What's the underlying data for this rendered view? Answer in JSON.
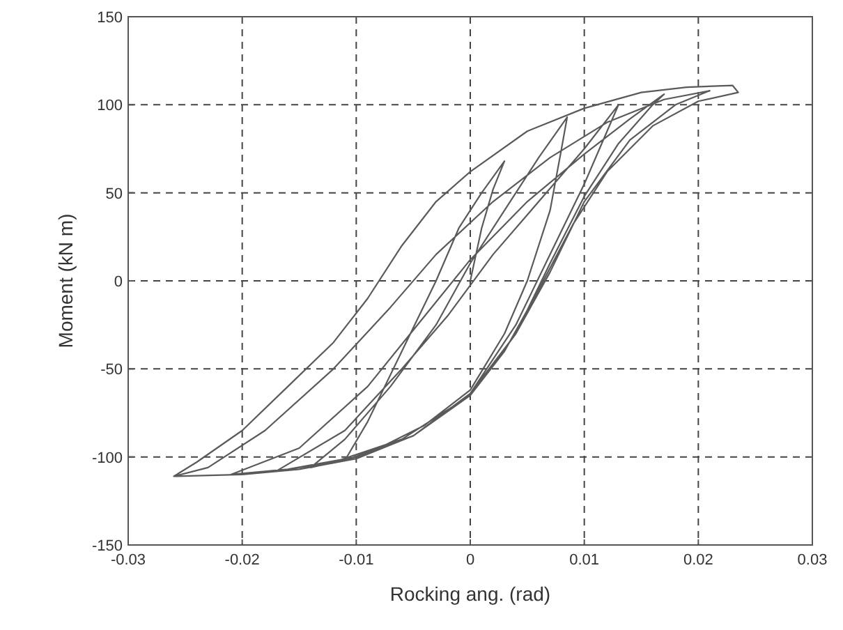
{
  "chart_data": {
    "type": "line",
    "xlabel": "Rocking ang. (rad)",
    "ylabel": "Moment (kN m)",
    "xlim": [
      -0.03,
      0.03
    ],
    "ylim": [
      -150,
      150
    ],
    "xticks": [
      -0.03,
      -0.02,
      -0.01,
      0,
      0.01,
      0.02,
      0.03
    ],
    "yticks": [
      -150,
      -100,
      -50,
      0,
      50,
      100,
      150
    ],
    "grid": true,
    "marker": "none",
    "line_style": "solid",
    "series": [
      {
        "color": "#5a5a5a",
        "x": [
          0,
          0.001,
          0.002,
          0.003,
          0.001,
          -0.001,
          -0.003,
          -0.006,
          -0.009,
          -0.011,
          -0.008,
          -0.004,
          0,
          0.003,
          0.005,
          0.007,
          0.008,
          0.0085,
          0.006,
          0.003,
          0,
          -0.003,
          -0.007,
          -0.011,
          -0.014,
          -0.01,
          -0.005,
          0,
          0.004,
          0.007,
          0.01,
          0.012,
          0.013,
          0.01,
          0.006,
          0.002,
          -0.002,
          -0.006,
          -0.011,
          -0.017,
          -0.012,
          -0.006,
          0,
          0.004,
          0.007,
          0.01,
          0.013,
          0.016,
          0.017,
          0.014,
          0.01,
          0.005,
          0,
          -0.004,
          -0.009,
          -0.015,
          -0.021,
          -0.016,
          -0.01,
          -0.005,
          0,
          0.004,
          0.007,
          0.01,
          0.014,
          0.018,
          0.021,
          0.017,
          0.012,
          0.007,
          0.002,
          -0.003,
          -0.007,
          -0.012,
          -0.018,
          -0.023,
          -0.026,
          -0.02,
          -0.015,
          -0.01,
          -0.005,
          0,
          0.003,
          0.006,
          0.009,
          0.012,
          0.016,
          0.02,
          0.0235,
          0.023,
          0.019,
          0.015,
          0.01,
          0.005,
          0,
          -0.003,
          -0.006,
          -0.009,
          -0.012,
          -0.016,
          -0.02,
          -0.024,
          -0.026
        ],
        "values": [
          0,
          30,
          52,
          68,
          50,
          30,
          0,
          -40,
          -80,
          -102,
          -95,
          -82,
          -62,
          -30,
          0,
          40,
          75,
          93,
          70,
          40,
          10,
          -25,
          -60,
          -90,
          -106,
          -100,
          -88,
          -64,
          -25,
          15,
          55,
          85,
          100,
          75,
          45,
          15,
          -20,
          -50,
          -85,
          -108,
          -103,
          -90,
          -65,
          -30,
          10,
          48,
          78,
          100,
          106,
          92,
          72,
          45,
          12,
          -20,
          -60,
          -95,
          -110,
          -107,
          -100,
          -88,
          -64,
          -30,
          5,
          45,
          80,
          100,
          108,
          103,
          90,
          70,
          45,
          15,
          -15,
          -50,
          -85,
          -106,
          -111,
          -110,
          -107,
          -101,
          -88,
          -65,
          -40,
          -5,
          32,
          62,
          88,
          102,
          107,
          111,
          110,
          107,
          98,
          85,
          62,
          45,
          20,
          -10,
          -35,
          -60,
          -85,
          -103,
          -111
        ]
      }
    ]
  }
}
